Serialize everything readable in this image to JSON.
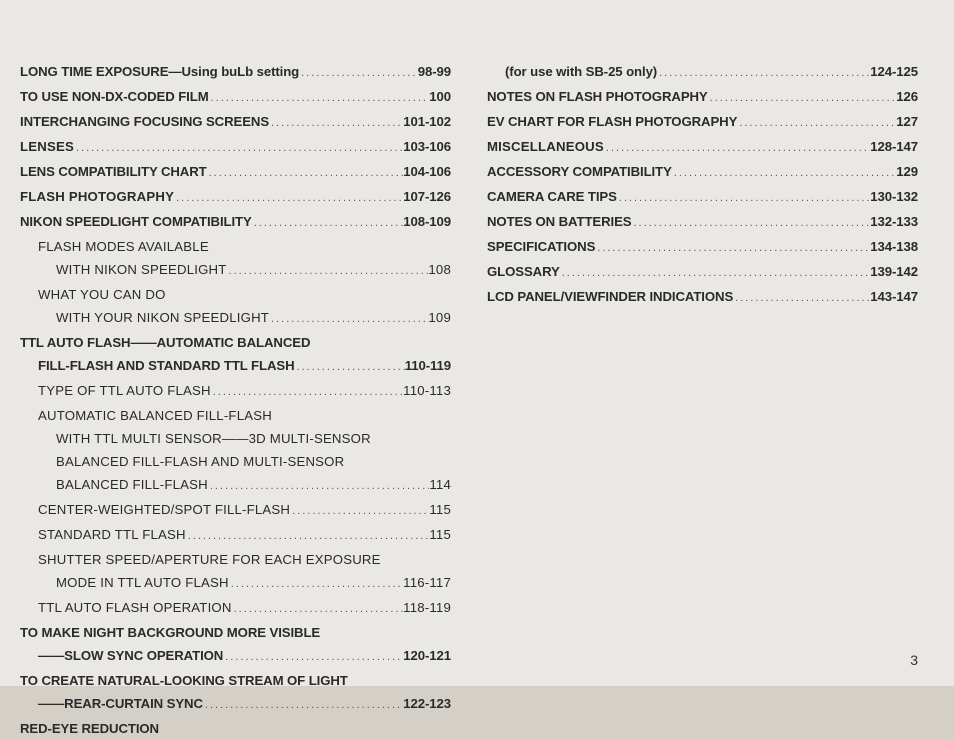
{
  "page_number": "3",
  "left_column": [
    {
      "label_html": "LONG TIME EXPOSURE—Using <b>buLb</b> setting",
      "page": "98-99",
      "indent": 0,
      "weight": "bold"
    },
    {
      "label": "TO USE NON-DX-CODED FILM",
      "page": "100",
      "indent": 0,
      "weight": "bold"
    },
    {
      "label": "INTERCHANGING FOCUSING SCREENS",
      "page": "101-102",
      "indent": 0,
      "weight": "bold"
    },
    {
      "label": "LENSES",
      "page": "103-106",
      "indent": 0,
      "weight": "heavy"
    },
    {
      "label": "LENS COMPATIBILITY CHART",
      "page": "104-106",
      "indent": 0,
      "weight": "bold"
    },
    {
      "label": "FLASH PHOTOGRAPHY",
      "page": "107-126",
      "indent": 0,
      "weight": "heavy"
    },
    {
      "label": "NIKON SPEEDLIGHT COMPATIBILITY",
      "page": "108-109",
      "indent": 0,
      "weight": "bold"
    },
    {
      "label": "FLASH MODES AVAILABLE",
      "page": "",
      "indent": 1,
      "weight": "regular",
      "no_leader": true
    },
    {
      "label": "WITH NIKON SPEEDLIGHT",
      "page": "108",
      "indent": 2,
      "weight": "regular"
    },
    {
      "label": "WHAT YOU CAN DO",
      "page": "",
      "indent": 1,
      "weight": "regular",
      "no_leader": true
    },
    {
      "label": "WITH YOUR NIKON SPEEDLIGHT",
      "page": "109",
      "indent": 2,
      "weight": "regular"
    },
    {
      "label": "TTL AUTO FLASH——AUTOMATIC BALANCED",
      "page": "",
      "indent": 0,
      "weight": "bold",
      "no_leader": true
    },
    {
      "label": "FILL-FLASH AND STANDARD TTL FLASH",
      "page": "110-119",
      "indent": 1,
      "weight": "bold"
    },
    {
      "label": "TYPE OF TTL AUTO FLASH",
      "page": "110-113",
      "indent": 1,
      "weight": "regular"
    },
    {
      "label": "AUTOMATIC BALANCED FILL-FLASH",
      "page": "",
      "indent": 1,
      "weight": "regular",
      "no_leader": true
    },
    {
      "label": "WITH TTL MULTI SENSOR——3D MULTI-SENSOR",
      "page": "",
      "indent": 2,
      "weight": "regular",
      "no_leader": true
    },
    {
      "label": "BALANCED FILL-FLASH AND MULTI-SENSOR",
      "page": "",
      "indent": 2,
      "weight": "regular",
      "no_leader": true
    },
    {
      "label": "BALANCED FILL-FLASH",
      "page": "114",
      "indent": 2,
      "weight": "regular"
    },
    {
      "label": "CENTER-WEIGHTED/SPOT FILL-FLASH",
      "page": "115",
      "indent": 1,
      "weight": "regular"
    },
    {
      "label": "STANDARD TTL FLASH",
      "page": "115",
      "indent": 1,
      "weight": "regular"
    },
    {
      "label": "SHUTTER SPEED/APERTURE FOR EACH EXPOSURE",
      "page": "",
      "indent": 1,
      "weight": "regular",
      "no_leader": true
    },
    {
      "label": "MODE IN TTL AUTO FLASH",
      "page": "116-117",
      "indent": 2,
      "weight": "regular"
    },
    {
      "label": "TTL AUTO FLASH OPERATION",
      "page": "118-119",
      "indent": 1,
      "weight": "regular"
    },
    {
      "label": "TO MAKE NIGHT BACKGROUND MORE VISIBLE",
      "page": "",
      "indent": 0,
      "weight": "bold",
      "no_leader": true
    },
    {
      "label": "——SLOW SYNC OPERATION",
      "page": "120-121",
      "indent": 1,
      "weight": "bold"
    },
    {
      "label": "TO CREATE NATURAL-LOOKING STREAM OF LIGHT",
      "page": "",
      "indent": 0,
      "weight": "bold",
      "no_leader": true
    },
    {
      "label": "——REAR-CURTAIN SYNC",
      "page": "122-123",
      "indent": 1,
      "weight": "bold"
    },
    {
      "label": "RED-EYE REDUCTION",
      "page": "",
      "indent": 0,
      "weight": "bold",
      "no_leader": true
    }
  ],
  "right_column": [
    {
      "label": "(for use with SB-25 only)",
      "page": "124-125",
      "indent": 1,
      "weight": "bold"
    },
    {
      "label": "NOTES ON FLASH PHOTOGRAPHY",
      "page": "126",
      "indent": 0,
      "weight": "bold"
    },
    {
      "label": "EV CHART FOR FLASH PHOTOGRAPHY",
      "page": "127",
      "indent": 0,
      "weight": "bold"
    },
    {
      "label": "MISCELLANEOUS",
      "page": "128-147",
      "indent": 0,
      "weight": "heavy"
    },
    {
      "label": "ACCESSORY COMPATIBILITY",
      "page": "129",
      "indent": 0,
      "weight": "bold"
    },
    {
      "label": "CAMERA CARE TIPS",
      "page": "130-132",
      "indent": 0,
      "weight": "bold"
    },
    {
      "label": "NOTES ON BATTERIES",
      "page": "132-133",
      "indent": 0,
      "weight": "bold"
    },
    {
      "label": "SPECIFICATIONS",
      "page": "134-138",
      "indent": 0,
      "weight": "bold"
    },
    {
      "label": "GLOSSARY",
      "page": "139-142",
      "indent": 0,
      "weight": "bold"
    },
    {
      "label": "LCD PANEL/VIEWFINDER INDICATIONS",
      "page": "143-147",
      "indent": 0,
      "weight": "bold"
    }
  ]
}
